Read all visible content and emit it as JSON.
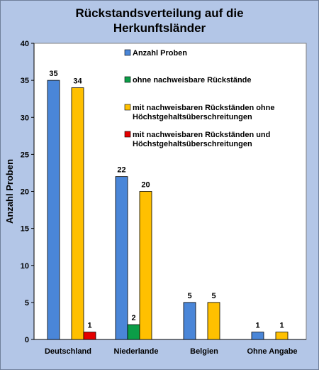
{
  "chart_data": {
    "type": "bar",
    "title": "Rückstandsverteilung auf die Herkunftsländer",
    "title_lines": [
      "Rückstandsverteilung auf die",
      "Herkunftsländer"
    ],
    "ylabel": "Anzahl Proben",
    "xlabel": "",
    "ylim": [
      0,
      40
    ],
    "yticks": [
      0,
      5,
      10,
      15,
      20,
      25,
      30,
      35,
      40
    ],
    "grid": false,
    "legend_position": "top-right inside plot",
    "categories": [
      "Deutschland",
      "Niederlande",
      "Belgien",
      "Ohne Angabe"
    ],
    "series": [
      {
        "name": "Anzahl Proben",
        "color": "#4a86d8",
        "values": [
          35,
          22,
          5,
          1
        ]
      },
      {
        "name": "ohne nachweisbare Rückstände",
        "color": "#0b9d47",
        "values": [
          0,
          2,
          0,
          0
        ]
      },
      {
        "name": "mit nachweisbaren Rückständen ohne Höchstgehaltsüberschreitungen",
        "legend_lines": [
          "mit nachweisbaren Rückständen ohne",
          "Höchstgehaltsüberschreitungen"
        ],
        "color": "#ffc000",
        "values": [
          34,
          20,
          5,
          1
        ]
      },
      {
        "name": "mit nachweisbaren Rückständen und Höchstgehaltsüberschreitungen",
        "legend_lines": [
          "mit nachweisbaren Rückständen und",
          "Höchstgehaltsüberschreitungen"
        ],
        "color": "#e50000",
        "values": [
          1,
          0,
          0,
          0
        ]
      }
    ],
    "data_labels": [
      [
        "35",
        "",
        "34",
        "1"
      ],
      [
        "22",
        "2",
        "20",
        ""
      ],
      [
        "5",
        "",
        "5",
        ""
      ],
      [
        "1",
        "",
        "1",
        ""
      ]
    ],
    "plot_background": "#ffffff",
    "frame_background": "#b3c6e7"
  }
}
